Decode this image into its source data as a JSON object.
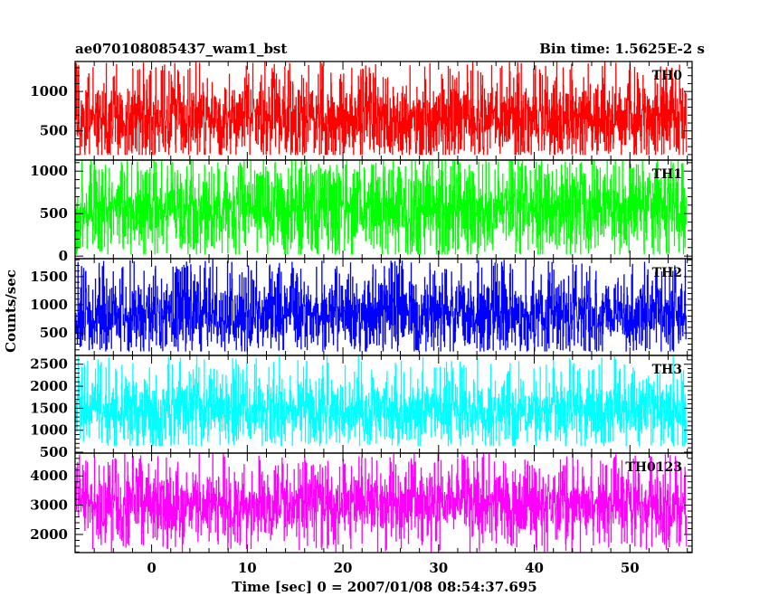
{
  "header": {
    "source_name": "ae070108085437_wam1_bst",
    "bin_time": "Bin time: 1.5625E-2 s"
  },
  "chart_data": {
    "type": "line",
    "xlabel": "Time [sec] 0 = 2007/01/08 08:54:37.695",
    "ylabel": "Counts/sec",
    "xlim": [
      -8,
      56.5
    ],
    "x_start": -7.9,
    "x_end": 55.9,
    "x_ticks": [
      0,
      10,
      20,
      30,
      40,
      50
    ],
    "grid": false,
    "legend": "none",
    "panels": [
      {
        "label": "TH0",
        "color": "#ff0000",
        "ylim": [
          130,
          1380
        ],
        "y_ticks": [
          500,
          1000
        ],
        "baseline": 640,
        "noise": 260,
        "low_floor": 195,
        "high_ceiling": 1380
      },
      {
        "label": "TH1",
        "color": "#00ff00",
        "ylim": [
          -30,
          1130
        ],
        "y_ticks": [
          0,
          500,
          1000
        ],
        "baseline": 560,
        "noise": 270,
        "low_floor": 20,
        "high_ceiling": 1130
      },
      {
        "label": "TH2",
        "color": "#0000ff",
        "ylim": [
          100,
          1820
        ],
        "y_ticks": [
          500,
          1000,
          1500
        ],
        "baseline": 850,
        "noise": 330,
        "low_floor": 170,
        "high_ceiling": 1820
      },
      {
        "label": "TH3",
        "color": "#00ffff",
        "ylim": [
          480,
          2700
        ],
        "y_ticks": [
          500,
          1000,
          1500,
          2000,
          2500
        ],
        "baseline": 1450,
        "noise": 380,
        "low_floor": 640,
        "high_ceiling": 2700
      },
      {
        "label": "TH0123",
        "color": "#ff00ff",
        "ylim": [
          1380,
          4780
        ],
        "y_ticks": [
          2000,
          3000,
          4000
        ],
        "baseline": 3000,
        "noise": 600,
        "low_floor": 1400,
        "high_ceiling": 4780
      }
    ]
  }
}
